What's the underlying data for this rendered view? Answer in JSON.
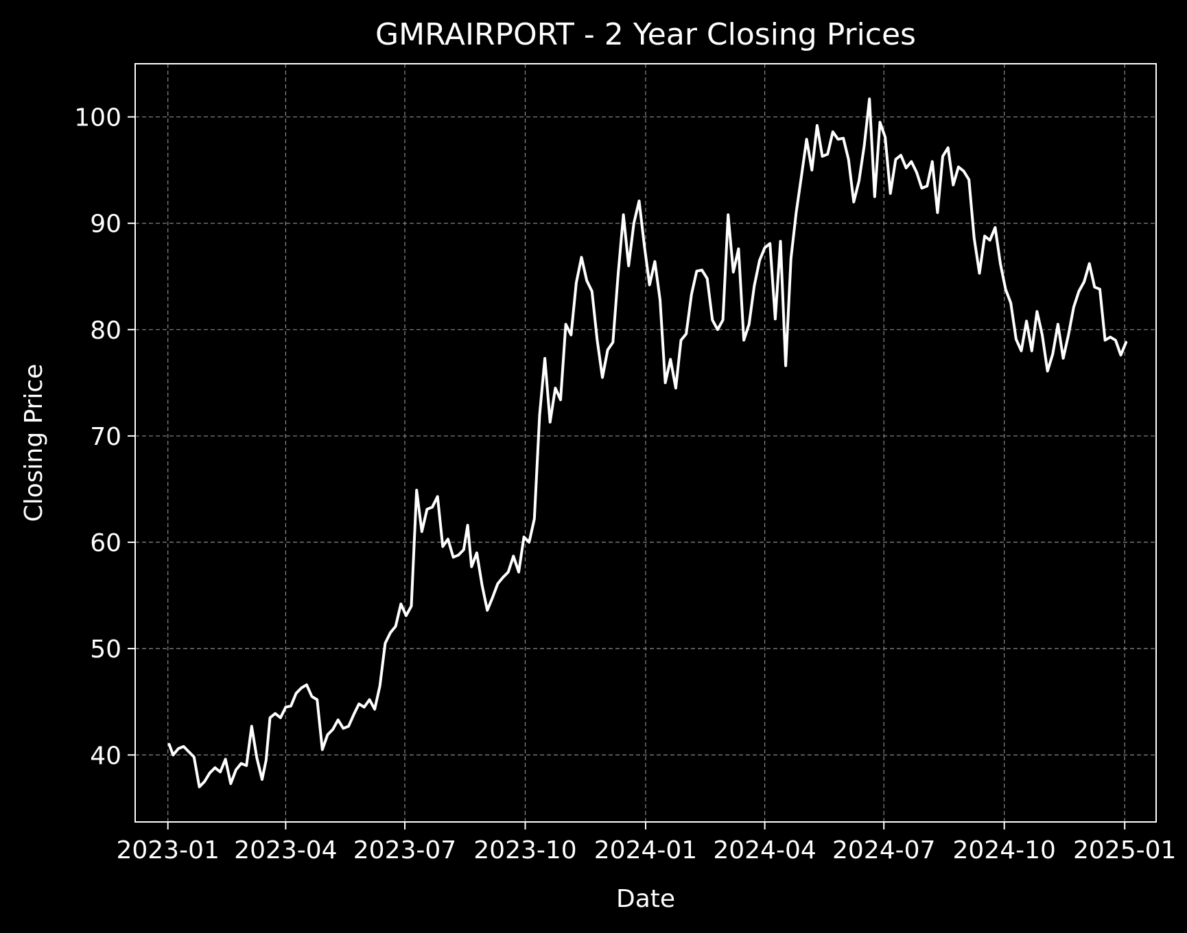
{
  "chart_data": {
    "type": "line",
    "title": "GMRAIRPORT - 2 Year Closing Prices",
    "xlabel": "Date",
    "ylabel": "Closing Price",
    "grid": true,
    "grid_style": "dashed",
    "colors": {
      "background": "#000000",
      "line": "#ffffff",
      "axes": "#ffffff",
      "grid": "#8c8c8c"
    },
    "xlim": [
      "2022-12-07",
      "2025-01-25"
    ],
    "ylim": [
      33.7,
      105.0
    ],
    "x_ticks": [
      "2023-01",
      "2023-04",
      "2023-07",
      "2023-10",
      "2024-01",
      "2024-04",
      "2024-07",
      "2024-10",
      "2025-01"
    ],
    "x_tick_dates": [
      "2023-01-01",
      "2023-04-01",
      "2023-07-01",
      "2023-10-01",
      "2024-01-01",
      "2024-04-01",
      "2024-07-01",
      "2024-10-01",
      "2025-01-01"
    ],
    "y_ticks": [
      40,
      50,
      60,
      70,
      80,
      90,
      100
    ],
    "series": [
      {
        "x": [
          "2023-01-02",
          "2023-01-05",
          "2023-01-09",
          "2023-01-13",
          "2023-01-17",
          "2023-01-21",
          "2023-01-25",
          "2023-01-29",
          "2023-02-02",
          "2023-02-06",
          "2023-02-10",
          "2023-02-14",
          "2023-02-18",
          "2023-02-22",
          "2023-02-26",
          "2023-03-02",
          "2023-03-06",
          "2023-03-10",
          "2023-03-14",
          "2023-03-17",
          "2023-03-20",
          "2023-03-24",
          "2023-03-28",
          "2023-04-01",
          "2023-04-05",
          "2023-04-09",
          "2023-04-13",
          "2023-04-17",
          "2023-04-21",
          "2023-04-25",
          "2023-04-29",
          "2023-05-03",
          "2023-05-07",
          "2023-05-11",
          "2023-05-15",
          "2023-05-19",
          "2023-05-23",
          "2023-05-27",
          "2023-05-31",
          "2023-06-04",
          "2023-06-08",
          "2023-06-12",
          "2023-06-16",
          "2023-06-20",
          "2023-06-24",
          "2023-06-28",
          "2023-07-02",
          "2023-07-06",
          "2023-07-10",
          "2023-07-14",
          "2023-07-18",
          "2023-07-22",
          "2023-07-26",
          "2023-07-30",
          "2023-08-03",
          "2023-08-07",
          "2023-08-11",
          "2023-08-15",
          "2023-08-18",
          "2023-08-21",
          "2023-08-25",
          "2023-08-29",
          "2023-09-02",
          "2023-09-06",
          "2023-09-10",
          "2023-09-14",
          "2023-09-18",
          "2023-09-22",
          "2023-09-26",
          "2023-09-30",
          "2023-10-04",
          "2023-10-08",
          "2023-10-12",
          "2023-10-16",
          "2023-10-20",
          "2023-10-24",
          "2023-10-28",
          "2023-11-01",
          "2023-11-05",
          "2023-11-09",
          "2023-11-13",
          "2023-11-17",
          "2023-11-21",
          "2023-11-25",
          "2023-11-29",
          "2023-12-03",
          "2023-12-07",
          "2023-12-11",
          "2023-12-15",
          "2023-12-19",
          "2023-12-23",
          "2023-12-27",
          "2023-12-31",
          "2024-01-04",
          "2024-01-08",
          "2024-01-12",
          "2024-01-16",
          "2024-01-20",
          "2024-01-24",
          "2024-01-28",
          "2024-02-01",
          "2024-02-05",
          "2024-02-09",
          "2024-02-13",
          "2024-02-17",
          "2024-02-21",
          "2024-02-25",
          "2024-02-29",
          "2024-03-04",
          "2024-03-08",
          "2024-03-12",
          "2024-03-16",
          "2024-03-20",
          "2024-03-24",
          "2024-03-28",
          "2024-04-01",
          "2024-04-05",
          "2024-04-09",
          "2024-04-13",
          "2024-04-17",
          "2024-04-21",
          "2024-04-25",
          "2024-04-29",
          "2024-05-03",
          "2024-05-07",
          "2024-05-11",
          "2024-05-15",
          "2024-05-19",
          "2024-05-23",
          "2024-05-27",
          "2024-05-31",
          "2024-06-04",
          "2024-06-08",
          "2024-06-12",
          "2024-06-16",
          "2024-06-20",
          "2024-06-24",
          "2024-06-28",
          "2024-07-02",
          "2024-07-06",
          "2024-07-10",
          "2024-07-14",
          "2024-07-18",
          "2024-07-22",
          "2024-07-26",
          "2024-07-30",
          "2024-08-03",
          "2024-08-07",
          "2024-08-11",
          "2024-08-15",
          "2024-08-19",
          "2024-08-23",
          "2024-08-27",
          "2024-08-31",
          "2024-09-04",
          "2024-09-08",
          "2024-09-12",
          "2024-09-16",
          "2024-09-20",
          "2024-09-24",
          "2024-09-28",
          "2024-10-02",
          "2024-10-06",
          "2024-10-10",
          "2024-10-14",
          "2024-10-18",
          "2024-10-22",
          "2024-10-26",
          "2024-10-30",
          "2024-11-03",
          "2024-11-07",
          "2024-11-11",
          "2024-11-15",
          "2024-11-19",
          "2024-11-23",
          "2024-11-27",
          "2024-12-01",
          "2024-12-05",
          "2024-12-09",
          "2024-12-13",
          "2024-12-17",
          "2024-12-21",
          "2024-12-25",
          "2024-12-29",
          "2025-01-02"
        ],
        "y": [
          41.0,
          40.0,
          40.6,
          40.8,
          40.3,
          39.8,
          37.0,
          37.5,
          38.3,
          38.8,
          38.4,
          39.6,
          37.3,
          38.6,
          39.2,
          39.0,
          42.7,
          39.7,
          37.7,
          39.5,
          43.5,
          43.9,
          43.5,
          44.5,
          44.6,
          45.8,
          46.3,
          46.6,
          45.5,
          45.2,
          40.5,
          41.9,
          42.4,
          43.3,
          42.5,
          42.7,
          43.8,
          44.8,
          44.5,
          45.2,
          44.3,
          46.5,
          50.5,
          51.5,
          52.1,
          54.2,
          53.1,
          54.0,
          64.9,
          61.0,
          63.1,
          63.3,
          64.3,
          59.6,
          60.3,
          58.6,
          58.8,
          59.3,
          61.6,
          57.7,
          59.0,
          56.0,
          53.6,
          54.8,
          56.1,
          56.7,
          57.2,
          58.7,
          57.2,
          60.5,
          60.0,
          62.2,
          72.0,
          77.3,
          71.3,
          74.5,
          73.4,
          80.5,
          79.5,
          84.4,
          86.8,
          84.6,
          83.6,
          79.0,
          75.5,
          78.1,
          78.8,
          85.2,
          90.8,
          86.0,
          90.0,
          92.1,
          87.9,
          84.2,
          86.4,
          82.8,
          75.0,
          77.2,
          74.5,
          79.0,
          79.6,
          83.3,
          85.5,
          85.6,
          84.8,
          80.9,
          80.0,
          80.9,
          90.8,
          85.4,
          87.6,
          79.0,
          80.5,
          84.1,
          86.5,
          87.7,
          88.1,
          81.0,
          88.3,
          76.6,
          86.7,
          91.0,
          94.4,
          97.9,
          95.0,
          99.2,
          96.3,
          96.5,
          98.6,
          97.9,
          98.0,
          96.0,
          92.0,
          94.0,
          97.3,
          101.7,
          92.5,
          99.5,
          98.1,
          92.8,
          96.0,
          96.4,
          95.2,
          95.8,
          94.8,
          93.3,
          93.5,
          95.8,
          91.0,
          96.3,
          97.1,
          93.6,
          95.3,
          94.9,
          94.1,
          88.6,
          85.3,
          88.8,
          88.4,
          89.6,
          86.2,
          83.8,
          82.5,
          79.1,
          78.0,
          80.8,
          78.0,
          81.7,
          79.5,
          76.1,
          77.7,
          80.5,
          77.3,
          79.5,
          82.1,
          83.6,
          84.5,
          86.2,
          84.0,
          83.8,
          79.0,
          79.3,
          79.0,
          77.6,
          78.8
        ]
      }
    ]
  }
}
